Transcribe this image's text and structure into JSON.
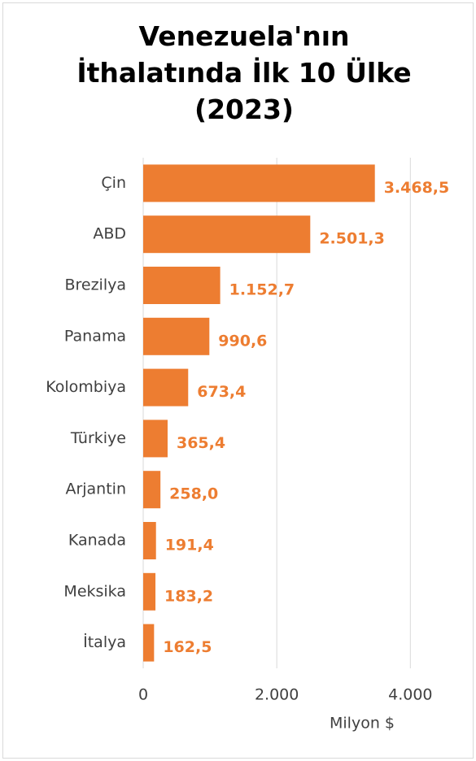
{
  "chart_data": {
    "type": "bar",
    "orientation": "horizontal",
    "title": "Venezuela'nın İthalatında İlk 10 Ülke (2023)",
    "categories": [
      "Çin",
      "ABD",
      "Brezilya",
      "Panama",
      "Kolombiya",
      "Türkiye",
      "Arjantin",
      "Kanada",
      "Meksika",
      "İtalya"
    ],
    "values": [
      3468.5,
      2501.3,
      1152.7,
      990.6,
      673.4,
      365.4,
      258.0,
      191.4,
      183.2,
      162.5
    ],
    "value_labels": [
      "3.468,5",
      "2.501,3",
      "1.152,7",
      "990,6",
      "673,4",
      "365,4",
      "258,0",
      "191,4",
      "183,2",
      "162,5"
    ],
    "color": "#ED7D31",
    "xlabel": "Milyon $",
    "xlim": [
      0,
      4800
    ],
    "xticks": [
      0,
      {
        "value": 2000,
        "label": "2.000"
      },
      {
        "value": 4000,
        "label": "4.000"
      }
    ],
    "grid": true
  }
}
